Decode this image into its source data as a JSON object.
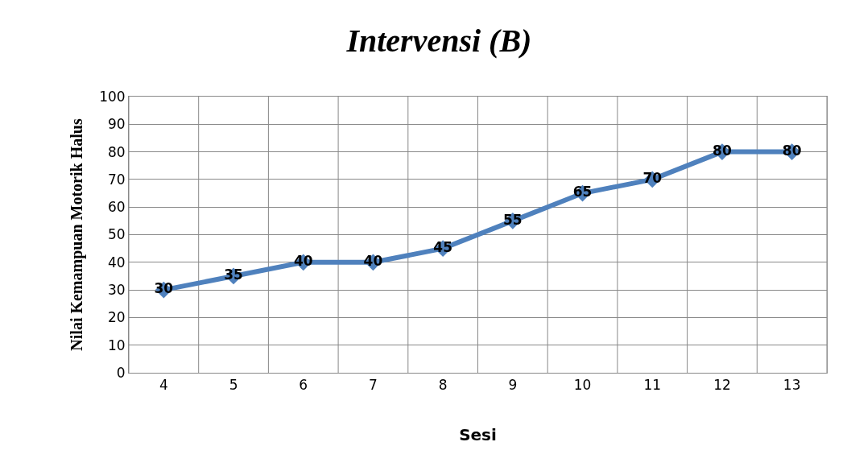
{
  "chart_data": {
    "type": "line",
    "title": "Intervensi (B)",
    "xlabel": "Sesi",
    "ylabel": "Nilai Kemampuan Motorik Halus",
    "categories": [
      "4",
      "5",
      "6",
      "7",
      "8",
      "9",
      "10",
      "11",
      "12",
      "13"
    ],
    "series": [
      {
        "color": "#4f81bd",
        "values": [
          30,
          35,
          40,
          40,
          45,
          55,
          65,
          70,
          80,
          80
        ]
      }
    ],
    "ylim": [
      0,
      100
    ],
    "yticks": [
      0,
      10,
      20,
      30,
      40,
      50,
      60,
      70,
      80,
      90,
      100
    ],
    "grid": true,
    "marker": "diamond",
    "line_style": "solid",
    "data_labels": true
  }
}
